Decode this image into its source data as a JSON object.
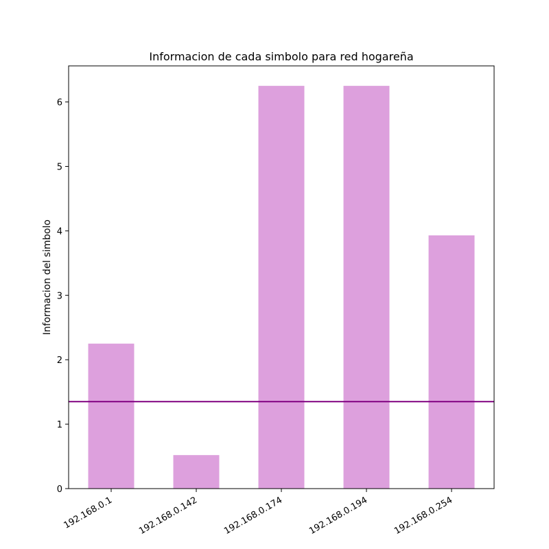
{
  "chart_data": {
    "type": "bar",
    "title": "Informacion de cada simbolo para red hogareña",
    "xlabel": "",
    "ylabel": "Informacion del simbolo",
    "categories": [
      "192.168.0.1",
      "192.168.0.142",
      "192.168.0.174",
      "192.168.0.194",
      "192.168.0.254"
    ],
    "values": [
      2.25,
      0.52,
      6.25,
      6.25,
      3.93
    ],
    "ylim": [
      0,
      6.56
    ],
    "yticks": [
      0,
      1,
      2,
      3,
      4,
      5,
      6
    ],
    "bar_color": "#dda0dd",
    "reference_line": {
      "value": 1.35,
      "color": "#800080"
    },
    "grid": false,
    "legend": "none"
  }
}
